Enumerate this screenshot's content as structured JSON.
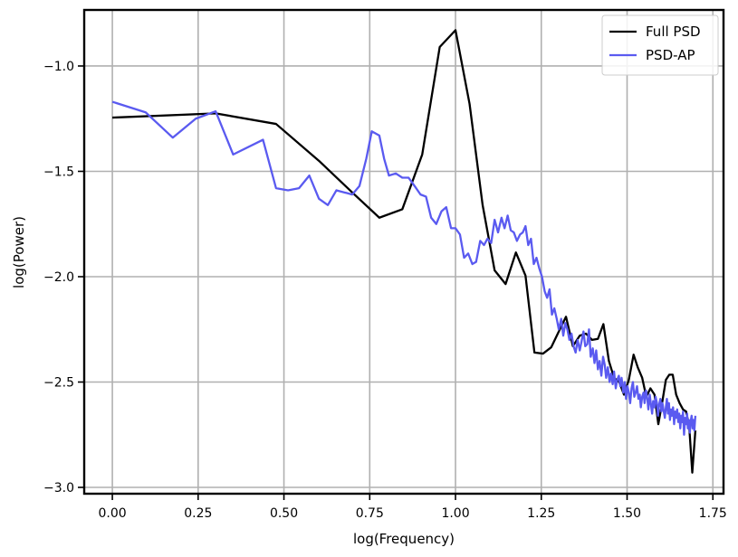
{
  "chart_data": {
    "type": "line",
    "xlabel": "log(Frequency)",
    "ylabel": "log(Power)",
    "xlim": [
      -0.082,
      1.781
    ],
    "ylim": [
      -3.03,
      -0.734
    ],
    "xticks": [
      {
        "value": 0,
        "label": "0.00"
      },
      {
        "value": 0.25,
        "label": "0.25"
      },
      {
        "value": 0.5,
        "label": "0.50"
      },
      {
        "value": 0.75,
        "label": "0.75"
      },
      {
        "value": 1,
        "label": "1.00"
      },
      {
        "value": 1.25,
        "label": "1.25"
      },
      {
        "value": 1.5,
        "label": "1.50"
      },
      {
        "value": 1.75,
        "label": "1.75"
      }
    ],
    "yticks": [
      {
        "value": -1,
        "label": "−1.0"
      },
      {
        "value": -1.5,
        "label": "−1.5"
      },
      {
        "value": -2,
        "label": "−2.0"
      },
      {
        "value": -2.5,
        "label": "−2.5"
      },
      {
        "value": -3,
        "label": "−3.0"
      }
    ],
    "grid": true,
    "legend": "upper right",
    "series": [
      {
        "name": "Full PSD",
        "color": "#000000",
        "x": [
          0,
          0.301,
          0.477,
          0.602,
          0.699,
          0.778,
          0.845,
          0.903,
          0.954,
          1.0,
          1.041,
          1.079,
          1.114,
          1.146,
          1.176,
          1.204,
          1.23,
          1.255,
          1.279,
          1.301,
          1.322,
          1.342,
          1.362,
          1.38,
          1.398,
          1.415,
          1.431,
          1.447,
          1.462,
          1.477,
          1.491,
          1.505,
          1.519,
          1.531,
          1.544,
          1.556,
          1.568,
          1.58,
          1.591,
          1.602,
          1.613,
          1.623,
          1.633,
          1.643,
          1.653,
          1.663,
          1.672,
          1.681,
          1.69,
          1.699
        ],
        "values": [
          -1.245,
          -1.225,
          -1.275,
          -1.45,
          -1.6,
          -1.72,
          -1.68,
          -1.42,
          -0.91,
          -0.83,
          -1.18,
          -1.66,
          -1.97,
          -2.035,
          -1.885,
          -1.995,
          -2.36,
          -2.365,
          -2.335,
          -2.26,
          -2.19,
          -2.33,
          -2.28,
          -2.27,
          -2.3,
          -2.295,
          -2.225,
          -2.4,
          -2.48,
          -2.5,
          -2.56,
          -2.49,
          -2.37,
          -2.43,
          -2.48,
          -2.57,
          -2.53,
          -2.56,
          -2.7,
          -2.6,
          -2.49,
          -2.465,
          -2.465,
          -2.56,
          -2.6,
          -2.63,
          -2.64,
          -2.71,
          -2.93,
          -2.73
        ]
      },
      {
        "name": "PSD-AP",
        "color": "#5a5af0",
        "x": [
          0,
          0.097,
          0.176,
          0.243,
          0.301,
          0.352,
          0.439,
          0.477,
          0.512,
          0.544,
          0.574,
          0.602,
          0.628,
          0.653,
          0.699,
          0.72,
          0.74,
          0.756,
          0.778,
          0.792,
          0.806,
          0.826,
          0.845,
          0.863,
          0.881,
          0.898,
          0.914,
          0.929,
          0.944,
          0.959,
          0.973,
          0.987,
          1.0,
          1.013,
          1.025,
          1.037,
          1.049,
          1.06,
          1.072,
          1.083,
          1.093,
          1.104,
          1.114,
          1.124,
          1.134,
          1.143,
          1.152,
          1.161,
          1.17,
          1.179,
          1.188,
          1.196,
          1.204,
          1.212,
          1.22,
          1.228,
          1.236,
          1.244,
          1.252,
          1.26,
          1.267,
          1.274,
          1.281,
          1.288,
          1.295,
          1.301,
          1.308,
          1.314,
          1.32,
          1.326,
          1.332,
          1.338,
          1.344,
          1.35,
          1.356,
          1.362,
          1.367,
          1.373,
          1.378,
          1.384,
          1.389,
          1.394,
          1.4,
          1.405,
          1.41,
          1.415,
          1.42,
          1.425,
          1.43,
          1.435,
          1.439,
          1.444,
          1.449,
          1.453,
          1.458,
          1.462,
          1.467,
          1.471,
          1.476,
          1.48,
          1.484,
          1.489,
          1.493,
          1.497,
          1.501,
          1.505,
          1.509,
          1.513,
          1.517,
          1.521,
          1.525,
          1.529,
          1.533,
          1.537,
          1.54,
          1.544,
          1.548,
          1.551,
          1.555,
          1.559,
          1.562,
          1.566,
          1.569,
          1.573,
          1.576,
          1.58,
          1.583,
          1.587,
          1.59,
          1.593,
          1.597,
          1.6,
          1.603,
          1.606,
          1.61,
          1.613,
          1.616,
          1.619,
          1.622,
          1.625,
          1.628,
          1.631,
          1.634,
          1.637,
          1.64,
          1.643,
          1.646,
          1.649,
          1.652,
          1.655,
          1.658,
          1.661,
          1.663,
          1.666,
          1.669,
          1.672,
          1.675,
          1.677,
          1.68,
          1.683,
          1.685,
          1.688,
          1.691,
          1.693,
          1.696,
          1.699
        ],
        "values": [
          -1.17,
          -1.22,
          -1.34,
          -1.25,
          -1.215,
          -1.42,
          -1.35,
          -1.58,
          -1.59,
          -1.58,
          -1.52,
          -1.63,
          -1.66,
          -1.59,
          -1.61,
          -1.57,
          -1.44,
          -1.31,
          -1.33,
          -1.44,
          -1.52,
          -1.51,
          -1.53,
          -1.53,
          -1.57,
          -1.61,
          -1.62,
          -1.72,
          -1.75,
          -1.69,
          -1.67,
          -1.77,
          -1.77,
          -1.8,
          -1.91,
          -1.89,
          -1.94,
          -1.93,
          -1.83,
          -1.85,
          -1.82,
          -1.84,
          -1.73,
          -1.79,
          -1.72,
          -1.77,
          -1.71,
          -1.78,
          -1.79,
          -1.83,
          -1.8,
          -1.79,
          -1.76,
          -1.85,
          -1.82,
          -1.94,
          -1.91,
          -1.96,
          -2.0,
          -2.07,
          -2.1,
          -2.06,
          -2.18,
          -2.15,
          -2.2,
          -2.25,
          -2.2,
          -2.28,
          -2.22,
          -2.25,
          -2.3,
          -2.27,
          -2.33,
          -2.36,
          -2.3,
          -2.35,
          -2.31,
          -2.26,
          -2.33,
          -2.32,
          -2.25,
          -2.38,
          -2.34,
          -2.41,
          -2.35,
          -2.44,
          -2.4,
          -2.47,
          -2.38,
          -2.42,
          -2.48,
          -2.43,
          -2.5,
          -2.46,
          -2.51,
          -2.45,
          -2.53,
          -2.49,
          -2.47,
          -2.52,
          -2.48,
          -2.55,
          -2.5,
          -2.58,
          -2.52,
          -2.55,
          -2.6,
          -2.53,
          -2.5,
          -2.57,
          -2.55,
          -2.52,
          -2.58,
          -2.56,
          -2.62,
          -2.57,
          -2.55,
          -2.6,
          -2.54,
          -2.58,
          -2.63,
          -2.56,
          -2.6,
          -2.65,
          -2.59,
          -2.62,
          -2.57,
          -2.6,
          -2.66,
          -2.61,
          -2.58,
          -2.64,
          -2.6,
          -2.63,
          -2.67,
          -2.62,
          -2.58,
          -2.65,
          -2.6,
          -2.68,
          -2.63,
          -2.66,
          -2.62,
          -2.7,
          -2.64,
          -2.67,
          -2.63,
          -2.69,
          -2.65,
          -2.72,
          -2.66,
          -2.69,
          -2.64,
          -2.75,
          -2.67,
          -2.7,
          -2.65,
          -2.72,
          -2.68,
          -2.74,
          -2.69,
          -2.66,
          -2.72,
          -2.68,
          -2.73,
          -2.66
        ]
      }
    ]
  }
}
